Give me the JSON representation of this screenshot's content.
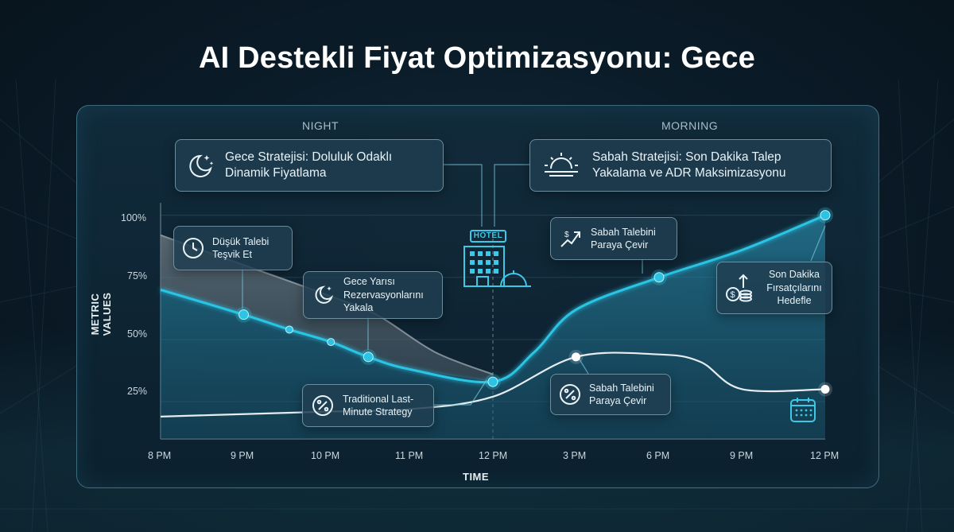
{
  "title": "AI Destekli Fiyat Optimizasyonu: Gece",
  "sections": {
    "night": "NIGHT",
    "morning": "MORNING"
  },
  "strategies": {
    "night": "Gece Stratejisi: Doluluk Odaklı Dinamik Fiyatlama",
    "morning": "Sabah Stratejisi: Son Dakika Talep Yakalama ve ADR Maksimizasyonu"
  },
  "hotel_sign": "HOTEL",
  "callouts": {
    "low_demand": "Düşük Talebi Teşvik Et",
    "midnight": "Gece Yarısı Rezervasyonlarını Yakala",
    "traditional": "Traditional Last-Minute Strategy",
    "morning_demand": "Sabah Talebini Paraya Çevir",
    "morning_discount": "Sabah Talebini Paraya Çevir",
    "opportunists": "Son Dakika Fırsatçılarını Hedefle"
  },
  "chart_data": {
    "type": "line",
    "title": "AI Destekli Fiyat Optimizasyonu: Gece",
    "xlabel": "TIME",
    "ylabel": "METRIC VALUES",
    "categories": [
      "8 PM",
      "9 PM",
      "10 PM",
      "11 PM",
      "12 PM",
      "3 PM",
      "6 PM",
      "9 PM",
      "12 PM"
    ],
    "yticks": [
      "25%",
      "50%",
      "75%",
      "100%"
    ],
    "ylim": [
      10,
      105
    ],
    "grid": true,
    "series": [
      {
        "role": "ai-price",
        "color": "#2cc4e4",
        "points": [
          [
            0,
            70
          ],
          [
            1,
            60
          ],
          [
            1.55,
            54
          ],
          [
            2.05,
            49
          ],
          [
            2.5,
            43
          ],
          [
            3.0,
            38
          ],
          [
            4,
            33
          ],
          [
            4.5,
            45
          ],
          [
            5,
            62
          ],
          [
            6,
            75
          ],
          [
            7,
            86
          ],
          [
            8,
            100
          ]
        ],
        "markers": [
          1,
          1.55,
          2.05,
          2.5,
          4,
          6,
          8
        ]
      },
      {
        "role": "occupancy",
        "color": "#9aa4ab",
        "points": [
          [
            0,
            92
          ],
          [
            1,
            80
          ],
          [
            2,
            68
          ],
          [
            2.6,
            60
          ],
          [
            3.3,
            45
          ],
          [
            4,
            36
          ]
        ]
      },
      {
        "role": "traditional",
        "color": "#e6ecef",
        "points": [
          [
            0,
            19
          ],
          [
            1,
            20
          ],
          [
            2,
            21
          ],
          [
            3,
            22
          ],
          [
            4,
            27
          ],
          [
            5,
            43
          ],
          [
            6,
            44
          ],
          [
            6.5,
            41
          ],
          [
            7,
            30
          ],
          [
            8,
            30
          ]
        ],
        "markers": [
          5,
          8
        ]
      }
    ]
  }
}
